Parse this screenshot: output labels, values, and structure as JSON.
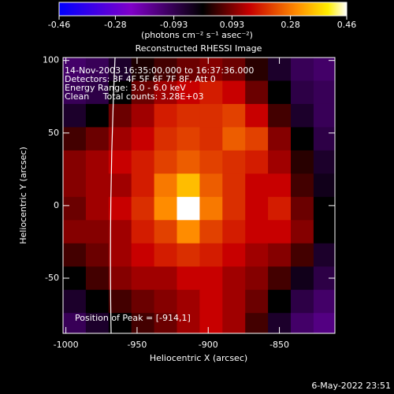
{
  "chart_data": {
    "type": "heatmap",
    "title": "Reconstructed RHESSI Image",
    "x_label": "Heliocentric X (arcsec)",
    "y_label": "Heliocentric Y (arcsec)",
    "colorbar_label": "(photons cm⁻² s⁻¹ asec⁻²)",
    "colorbar_lim": [
      -0.46,
      0.46
    ],
    "colorbar_ticks": [
      -0.46,
      -0.28,
      -0.093,
      0.093,
      0.28,
      0.46
    ],
    "xlim": [
      -1002,
      -811
    ],
    "xticks": [
      -1000,
      -950,
      -900,
      -850
    ],
    "ylim": [
      -88,
      102
    ],
    "yticks": [
      -50,
      0,
      50,
      100
    ],
    "annotations": [
      "14-Nov-2003 16:35:00.000 to 16:37:36.000",
      "Detectors: 3F 4F 5F 6F 7F 8F, Att 0",
      "Energy Range: 3.0 - 6.0 keV",
      "Clean     Total counts: 3.28E+03"
    ],
    "peak_label": "Position of Peak = [-914,1]",
    "footer": "6-May-2022 23:51",
    "x": [
      -994,
      -978,
      -962,
      -946,
      -930,
      -914,
      -898,
      -882,
      -866,
      -850,
      -834,
      -818
    ],
    "y": [
      94,
      78,
      62,
      46,
      30,
      14,
      -2,
      -18,
      -34,
      -50,
      -66,
      -82
    ],
    "z": [
      [
        -0.12,
        -0.1,
        -0.05,
        0.02,
        0.05,
        0.08,
        0.1,
        0.08,
        0.03,
        -0.05,
        -0.1,
        -0.12
      ],
      [
        -0.1,
        -0.08,
        0.0,
        0.08,
        0.12,
        0.15,
        0.18,
        0.15,
        0.08,
        0.0,
        -0.08,
        -0.1
      ],
      [
        -0.05,
        0.0,
        0.08,
        0.12,
        0.18,
        0.2,
        0.2,
        0.22,
        0.15,
        0.05,
        -0.05,
        -0.1
      ],
      [
        0.05,
        0.08,
        0.12,
        0.15,
        0.2,
        0.22,
        0.2,
        0.25,
        0.22,
        0.1,
        0.0,
        -0.08
      ],
      [
        0.1,
        0.12,
        0.15,
        0.18,
        0.22,
        0.25,
        0.22,
        0.2,
        0.18,
        0.12,
        0.03,
        -0.05
      ],
      [
        0.1,
        0.12,
        0.12,
        0.18,
        0.28,
        0.35,
        0.25,
        0.2,
        0.15,
        0.15,
        0.05,
        -0.03
      ],
      [
        0.08,
        0.12,
        0.15,
        0.2,
        0.3,
        0.46,
        0.28,
        0.2,
        0.15,
        0.18,
        0.08,
        0.0
      ],
      [
        0.1,
        0.1,
        0.12,
        0.18,
        0.22,
        0.3,
        0.22,
        0.18,
        0.15,
        0.15,
        0.1,
        0.0
      ],
      [
        0.05,
        0.08,
        0.12,
        0.15,
        0.18,
        0.2,
        0.18,
        0.15,
        0.12,
        0.1,
        0.05,
        -0.05
      ],
      [
        0.0,
        0.05,
        0.1,
        0.12,
        0.12,
        0.15,
        0.15,
        0.12,
        0.1,
        0.05,
        -0.03,
        -0.08
      ],
      [
        -0.05,
        0.0,
        0.05,
        0.08,
        0.1,
        0.12,
        0.15,
        0.12,
        0.08,
        0.0,
        -0.08,
        -0.12
      ],
      [
        -0.1,
        -0.05,
        0.0,
        0.05,
        0.08,
        0.12,
        0.15,
        0.12,
        0.05,
        -0.05,
        -0.12,
        -0.15
      ]
    ]
  }
}
